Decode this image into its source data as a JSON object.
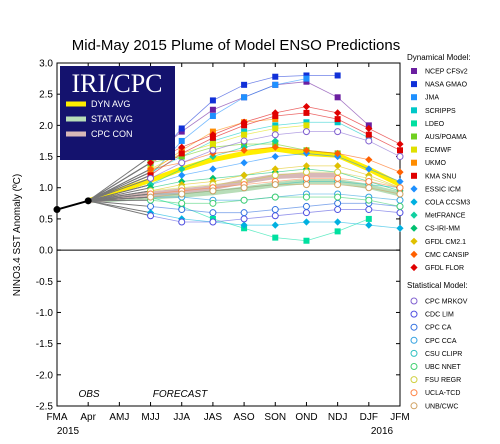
{
  "chart_data": {
    "type": "line",
    "title": "Mid-May 2015 Plume of Model ENSO Predictions",
    "ylabel": "NINO3.4 SST Anomaly (ºC)",
    "ylim": [
      -2.5,
      3.0
    ],
    "yticks": [
      "-2.5",
      "-2.0",
      "-1.5",
      "-1.0",
      "-0.5",
      "0.0",
      "0.5",
      "1.0",
      "1.5",
      "2.0",
      "2.5",
      "3.0"
    ],
    "categories": [
      "FMA",
      "Apr",
      "AMJ",
      "MJJ",
      "JJA",
      "JAS",
      "ASO",
      "SON",
      "OND",
      "NDJ",
      "DJF",
      "JFM"
    ],
    "year_labels": {
      "start": "2015",
      "end": "2016"
    },
    "grid": false,
    "logo": "IRI/CPC",
    "annotations": {
      "obs": "OBS",
      "forecast": "FORECAST"
    },
    "observed": {
      "x": [
        "FMA",
        "Apr"
      ],
      "values": [
        0.65,
        0.79
      ]
    },
    "averages": [
      {
        "name": "DYN AVG",
        "color": "#ffee00",
        "values": [
          null,
          0.79,
          null,
          1.12,
          1.3,
          1.45,
          1.55,
          1.62,
          1.55,
          1.52,
          1.3,
          1.05
        ]
      },
      {
        "name": "STAT AVG",
        "color": "#b8ddb8",
        "values": [
          null,
          0.79,
          null,
          0.85,
          0.88,
          0.92,
          0.98,
          1.05,
          1.1,
          1.1,
          1.02,
          0.9
        ]
      },
      {
        "name": "CPC CON",
        "color": "#d8b8b8",
        "values": [
          null,
          0.79,
          null,
          0.9,
          0.95,
          1.0,
          1.1,
          1.18,
          1.2,
          1.2,
          null,
          null
        ]
      }
    ],
    "legend_title_dynamical": "Dynamical Model:",
    "legend_title_statistical": "Statistical Model:",
    "dynamical_models": [
      {
        "name": "NCEP CFSv2",
        "color": "#6b1fa0",
        "marker": "square",
        "values": [
          null,
          0.79,
          null,
          1.5,
          1.9,
          2.25,
          2.45,
          2.65,
          2.7,
          2.45,
          2.0,
          null
        ]
      },
      {
        "name": "NASA GMAO",
        "color": "#1030d8",
        "marker": "square",
        "values": [
          null,
          0.79,
          null,
          1.4,
          1.95,
          2.4,
          2.65,
          2.78,
          2.8,
          2.8,
          null,
          null
        ]
      },
      {
        "name": "JMA",
        "color": "#1e90ff",
        "marker": "square",
        "values": [
          null,
          0.79,
          null,
          1.2,
          1.75,
          2.15,
          2.45,
          2.65,
          2.75,
          null,
          null,
          null
        ]
      },
      {
        "name": "SCRIPPS",
        "color": "#00c8c8",
        "marker": "square",
        "values": [
          null,
          0.79,
          null,
          1.25,
          1.5,
          1.75,
          1.9,
          2.0,
          2.05,
          2.05,
          1.8,
          null
        ]
      },
      {
        "name": "LDEO",
        "color": "#00e0a0",
        "marker": "square",
        "values": [
          null,
          0.79,
          null,
          0.85,
          0.7,
          0.5,
          0.35,
          0.2,
          0.15,
          0.3,
          0.5,
          null
        ]
      },
      {
        "name": "AUS/POAMA",
        "color": "#70d020",
        "marker": "square",
        "values": [
          null,
          0.79,
          null,
          1.4,
          1.5,
          1.65,
          1.7,
          1.7,
          1.6,
          1.55,
          null,
          null
        ]
      },
      {
        "name": "ECMWF",
        "color": "#e0e000",
        "marker": "square",
        "values": [
          null,
          0.79,
          null,
          1.3,
          1.55,
          1.7,
          1.85,
          1.95,
          2.0,
          null,
          null,
          null
        ]
      },
      {
        "name": "UKMO",
        "color": "#ff8c00",
        "marker": "square",
        "values": [
          null,
          0.79,
          null,
          1.25,
          1.6,
          1.9,
          2.05,
          2.1,
          null,
          null,
          null,
          null
        ]
      },
      {
        "name": "KMA SNU",
        "color": "#e00000",
        "marker": "square",
        "values": [
          null,
          0.79,
          null,
          1.2,
          1.55,
          1.8,
          2.0,
          2.15,
          2.2,
          2.1,
          1.85,
          1.6
        ]
      },
      {
        "name": "ESSIC ICM",
        "color": "#1e90ff",
        "marker": "diamond",
        "values": [
          null,
          0.79,
          null,
          1.05,
          1.2,
          1.3,
          1.4,
          1.5,
          1.55,
          1.5,
          1.3,
          1.1
        ]
      },
      {
        "name": "COLA CCSM3",
        "color": "#00b0e0",
        "marker": "diamond",
        "values": [
          null,
          0.79,
          null,
          0.6,
          0.5,
          0.45,
          0.4,
          0.4,
          0.45,
          0.45,
          0.4,
          0.35
        ]
      },
      {
        "name": "MetFRANCE",
        "color": "#10d0a0",
        "marker": "diamond",
        "values": [
          null,
          0.79,
          null,
          1.05,
          1.3,
          1.5,
          1.65,
          1.75,
          null,
          null,
          null,
          null
        ]
      },
      {
        "name": "CS-IRI-MM",
        "color": "#00c070",
        "marker": "diamond",
        "values": [
          null,
          0.79,
          null,
          1.0,
          1.1,
          1.15,
          1.2,
          1.25,
          1.3,
          1.25,
          1.1,
          0.95
        ]
      },
      {
        "name": "GFDL CM2.1",
        "color": "#e0c000",
        "marker": "diamond",
        "values": [
          null,
          0.79,
          null,
          0.95,
          1.05,
          1.1,
          1.2,
          1.3,
          1.35,
          1.35,
          1.2,
          1.0
        ]
      },
      {
        "name": "CMC CANSIP",
        "color": "#ff6000",
        "marker": "diamond",
        "values": [
          null,
          0.79,
          null,
          1.3,
          1.4,
          1.55,
          1.6,
          1.65,
          1.6,
          1.55,
          1.45,
          1.25
        ]
      },
      {
        "name": "GFDL FLOR",
        "color": "#e00000",
        "marker": "diamond",
        "values": [
          null,
          0.79,
          null,
          1.4,
          1.65,
          1.85,
          2.05,
          2.2,
          2.3,
          2.2,
          1.95,
          1.7
        ]
      }
    ],
    "statistical_models": [
      {
        "name": "CPC MRKOV",
        "color": "#8060d0",
        "marker": "circle",
        "values": [
          null,
          0.79,
          null,
          1.15,
          1.4,
          1.6,
          1.75,
          1.85,
          1.9,
          1.9,
          1.75,
          1.5
        ]
      },
      {
        "name": "CDC LIM",
        "color": "#5050e0",
        "marker": "circle",
        "values": [
          null,
          0.79,
          null,
          0.55,
          0.45,
          0.45,
          0.5,
          0.55,
          0.6,
          0.65,
          0.65,
          0.6
        ]
      },
      {
        "name": "CPC CA",
        "color": "#3070e0",
        "marker": "circle",
        "values": [
          null,
          0.79,
          null,
          0.7,
          0.65,
          0.6,
          0.6,
          0.65,
          0.7,
          0.75,
          0.75,
          0.7
        ]
      },
      {
        "name": "CPC CCA",
        "color": "#30a0e0",
        "marker": "circle",
        "values": [
          null,
          0.79,
          null,
          0.85,
          0.85,
          0.8,
          0.8,
          0.85,
          0.9,
          0.9,
          0.85,
          0.8
        ]
      },
      {
        "name": "CSU CLIPR",
        "color": "#30c0c0",
        "marker": "circle",
        "values": [
          null,
          0.79,
          null,
          0.9,
          0.9,
          0.95,
          1.0,
          1.05,
          1.1,
          1.1,
          1.05,
          1.0
        ]
      },
      {
        "name": "UBC NNET",
        "color": "#40d070",
        "marker": "circle",
        "values": [
          null,
          0.79,
          null,
          0.8,
          0.75,
          0.75,
          0.8,
          0.85,
          0.85,
          0.85,
          0.8,
          0.7
        ]
      },
      {
        "name": "FSU REGR",
        "color": "#d0d040",
        "marker": "circle",
        "values": [
          null,
          0.79,
          null,
          0.95,
          1.0,
          1.05,
          1.1,
          1.2,
          1.25,
          1.25,
          1.15,
          1.0
        ]
      },
      {
        "name": "UCLA-TCD",
        "color": "#ff8040",
        "marker": "circle",
        "values": [
          null,
          0.79,
          null,
          0.9,
          0.95,
          1.0,
          1.05,
          1.1,
          1.15,
          1.15,
          1.1,
          1.0
        ]
      },
      {
        "name": "UNB/CWC",
        "color": "#d0a060",
        "marker": "circle",
        "values": [
          null,
          0.79,
          null,
          0.85,
          0.9,
          0.95,
          1.0,
          1.05,
          1.05,
          1.05,
          1.0,
          0.9
        ]
      }
    ]
  }
}
